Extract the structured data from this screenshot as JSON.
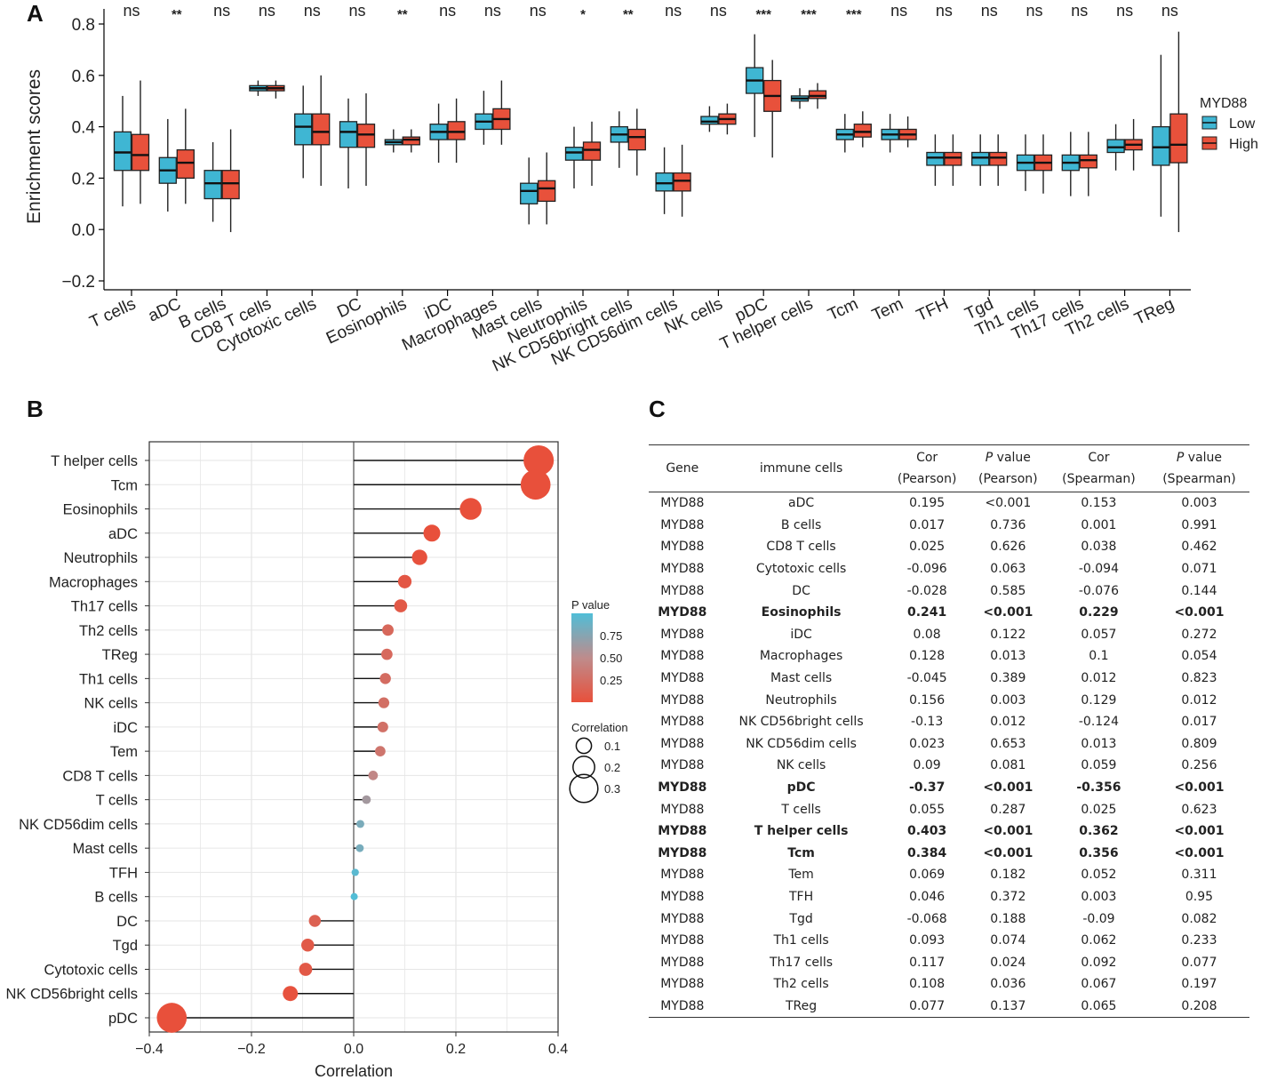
{
  "chart_data": [
    {
      "panel": "A",
      "type": "box",
      "ylabel": "Enrichment scores",
      "ylim": [
        -0.2,
        0.8
      ],
      "yticks": [
        "−0.2",
        "0.0",
        "0.2",
        "0.4",
        "0.6",
        "0.8"
      ],
      "legend": {
        "title": "MYD88",
        "position": "right",
        "entries": [
          {
            "name": "Low",
            "color": "#3fb6d3"
          },
          {
            "name": "High",
            "color": "#e8513b"
          }
        ]
      },
      "categories": [
        "T cells",
        "aDC",
        "B cells",
        "CD8 T cells",
        "Cytotoxic cells",
        "DC",
        "Eosinophils",
        "iDC",
        "Macrophages",
        "Mast cells",
        "Neutrophils",
        "NK CD56bright cells",
        "NK CD56dim cells",
        "NK cells",
        "pDC",
        "T helper cells",
        "Tcm",
        "Tem",
        "TFH",
        "Tgd",
        "Th1 cells",
        "Th17 cells",
        "Th2 cells",
        "TReg"
      ],
      "significance": [
        "ns",
        "**",
        "ns",
        "ns",
        "ns",
        "ns",
        "**",
        "ns",
        "ns",
        "ns",
        "*",
        "**",
        "ns",
        "ns",
        "***",
        "***",
        "***",
        "ns",
        "ns",
        "ns",
        "ns",
        "ns",
        "ns",
        "ns"
      ],
      "series": [
        {
          "name": "Low",
          "boxes": [
            [
              0.09,
              0.23,
              0.3,
              0.38,
              0.52
            ],
            [
              0.07,
              0.18,
              0.23,
              0.28,
              0.43
            ],
            [
              0.03,
              0.12,
              0.18,
              0.23,
              0.34
            ],
            [
              0.52,
              0.54,
              0.55,
              0.56,
              0.58
            ],
            [
              0.2,
              0.33,
              0.4,
              0.45,
              0.56
            ],
            [
              0.16,
              0.32,
              0.38,
              0.42,
              0.51
            ],
            [
              0.3,
              0.33,
              0.34,
              0.35,
              0.39
            ],
            [
              0.26,
              0.35,
              0.38,
              0.41,
              0.49
            ],
            [
              0.33,
              0.39,
              0.42,
              0.45,
              0.54
            ],
            [
              0.02,
              0.1,
              0.15,
              0.18,
              0.28
            ],
            [
              0.16,
              0.27,
              0.3,
              0.32,
              0.4
            ],
            [
              0.24,
              0.34,
              0.37,
              0.4,
              0.46
            ],
            [
              0.06,
              0.15,
              0.18,
              0.22,
              0.32
            ],
            [
              0.38,
              0.41,
              0.42,
              0.44,
              0.48
            ],
            [
              0.36,
              0.53,
              0.58,
              0.63,
              0.76
            ],
            [
              0.47,
              0.5,
              0.51,
              0.52,
              0.55
            ],
            [
              0.3,
              0.35,
              0.37,
              0.39,
              0.45
            ],
            [
              0.3,
              0.35,
              0.37,
              0.39,
              0.45
            ],
            [
              0.17,
              0.25,
              0.28,
              0.3,
              0.37
            ],
            [
              0.17,
              0.25,
              0.28,
              0.3,
              0.37
            ],
            [
              0.15,
              0.23,
              0.26,
              0.29,
              0.37
            ],
            [
              0.13,
              0.23,
              0.26,
              0.29,
              0.38
            ],
            [
              0.23,
              0.3,
              0.32,
              0.35,
              0.41
            ],
            [
              0.05,
              0.25,
              0.32,
              0.4,
              0.68
            ]
          ]
        },
        {
          "name": "High",
          "boxes": [
            [
              0.1,
              0.23,
              0.29,
              0.37,
              0.58
            ],
            [
              0.1,
              0.2,
              0.26,
              0.31,
              0.47
            ],
            [
              -0.01,
              0.12,
              0.18,
              0.23,
              0.39
            ],
            [
              0.51,
              0.54,
              0.55,
              0.56,
              0.58
            ],
            [
              0.17,
              0.33,
              0.38,
              0.45,
              0.6
            ],
            [
              0.17,
              0.32,
              0.37,
              0.41,
              0.53
            ],
            [
              0.3,
              0.33,
              0.35,
              0.36,
              0.39
            ],
            [
              0.26,
              0.35,
              0.38,
              0.42,
              0.51
            ],
            [
              0.33,
              0.39,
              0.43,
              0.47,
              0.58
            ],
            [
              0.02,
              0.11,
              0.16,
              0.19,
              0.3
            ],
            [
              0.17,
              0.27,
              0.31,
              0.34,
              0.42
            ],
            [
              0.21,
              0.31,
              0.36,
              0.39,
              0.47
            ],
            [
              0.05,
              0.15,
              0.19,
              0.22,
              0.33
            ],
            [
              0.37,
              0.41,
              0.43,
              0.45,
              0.49
            ],
            [
              0.28,
              0.46,
              0.52,
              0.58,
              0.66
            ],
            [
              0.47,
              0.51,
              0.52,
              0.54,
              0.57
            ],
            [
              0.32,
              0.36,
              0.38,
              0.41,
              0.46
            ],
            [
              0.32,
              0.35,
              0.37,
              0.39,
              0.44
            ],
            [
              0.17,
              0.25,
              0.28,
              0.3,
              0.37
            ],
            [
              0.17,
              0.25,
              0.28,
              0.3,
              0.37
            ],
            [
              0.14,
              0.23,
              0.26,
              0.29,
              0.37
            ],
            [
              0.13,
              0.24,
              0.27,
              0.29,
              0.38
            ],
            [
              0.23,
              0.31,
              0.33,
              0.35,
              0.43
            ],
            [
              -0.01,
              0.26,
              0.33,
              0.45,
              0.77
            ]
          ]
        }
      ]
    },
    {
      "panel": "B",
      "type": "lollipop",
      "xlabel": "Correlation",
      "xlim": [
        -0.4,
        0.4
      ],
      "xticks": [
        "−0.4",
        "−0.2",
        "0.0",
        "0.2",
        "0.4"
      ],
      "legend_pvalue": {
        "title": "P value",
        "ticks": [
          "0.75",
          "0.50",
          "0.25"
        ]
      },
      "legend_size": {
        "title": "Correlation",
        "ticks": [
          "0.1",
          "0.2",
          "0.3"
        ]
      },
      "categories": [
        "T helper cells",
        "Tcm",
        "Eosinophils",
        "aDC",
        "Neutrophils",
        "Macrophages",
        "Th17 cells",
        "Th2 cells",
        "TReg",
        "Th1 cells",
        "NK cells",
        "iDC",
        "Tem",
        "CD8 T cells",
        "T cells",
        "NK CD56dim cells",
        "Mast cells",
        "TFH",
        "B cells",
        "DC",
        "Tgd",
        "Cytotoxic cells",
        "NK CD56bright cells",
        "pDC"
      ],
      "values": [
        0.362,
        0.356,
        0.229,
        0.153,
        0.129,
        0.1,
        0.092,
        0.067,
        0.065,
        0.062,
        0.059,
        0.057,
        0.052,
        0.038,
        0.025,
        0.013,
        0.012,
        0.003,
        0.001,
        -0.076,
        -0.09,
        -0.094,
        -0.124,
        -0.356
      ],
      "pvalues": [
        0.0005,
        0.0005,
        0.0005,
        0.003,
        0.012,
        0.054,
        0.077,
        0.197,
        0.208,
        0.233,
        0.256,
        0.272,
        0.311,
        0.462,
        0.623,
        0.809,
        0.823,
        0.95,
        0.991,
        0.144,
        0.082,
        0.071,
        0.017,
        0.0005
      ]
    }
  ],
  "panels": {
    "a": "A",
    "b": "B",
    "c": "C"
  },
  "table": {
    "headers": [
      {
        "top": "Gene",
        "bottom": ""
      },
      {
        "top": "immune cells",
        "bottom": ""
      },
      {
        "top": "Cor",
        "bottom": "(Pearson)"
      },
      {
        "top_italic": "P",
        "top": " value",
        "bottom": "(Pearson)"
      },
      {
        "top": "Cor",
        "bottom": "(Spearman)"
      },
      {
        "top_italic": "P",
        "top": " value",
        "bottom": "(Spearman)"
      }
    ],
    "rows": [
      [
        "MYD88",
        "aDC",
        "0.195",
        "<0.001",
        "0.153",
        "0.003"
      ],
      [
        "MYD88",
        "B cells",
        "0.017",
        "0.736",
        "0.001",
        "0.991"
      ],
      [
        "MYD88",
        "CD8 T cells",
        "0.025",
        "0.626",
        "0.038",
        "0.462"
      ],
      [
        "MYD88",
        "Cytotoxic cells",
        "-0.096",
        "0.063",
        "-0.094",
        "0.071"
      ],
      [
        "MYD88",
        "DC",
        "-0.028",
        "0.585",
        "-0.076",
        "0.144"
      ],
      [
        "MYD88",
        "Eosinophils",
        "0.241",
        "<0.001",
        "0.229",
        "<0.001"
      ],
      [
        "MYD88",
        "iDC",
        "0.08",
        "0.122",
        "0.057",
        "0.272"
      ],
      [
        "MYD88",
        "Macrophages",
        "0.128",
        "0.013",
        "0.1",
        "0.054"
      ],
      [
        "MYD88",
        "Mast cells",
        "-0.045",
        "0.389",
        "0.012",
        "0.823"
      ],
      [
        "MYD88",
        "Neutrophils",
        "0.156",
        "0.003",
        "0.129",
        "0.012"
      ],
      [
        "MYD88",
        "NK CD56bright cells",
        "-0.13",
        "0.012",
        "-0.124",
        "0.017"
      ],
      [
        "MYD88",
        "NK CD56dim cells",
        "0.023",
        "0.653",
        "0.013",
        "0.809"
      ],
      [
        "MYD88",
        "NK cells",
        "0.09",
        "0.081",
        "0.059",
        "0.256"
      ],
      [
        "MYD88",
        "pDC",
        "-0.37",
        "<0.001",
        "-0.356",
        "<0.001"
      ],
      [
        "MYD88",
        "T cells",
        "0.055",
        "0.287",
        "0.025",
        "0.623"
      ],
      [
        "MYD88",
        "T helper cells",
        "0.403",
        "<0.001",
        "0.362",
        "<0.001"
      ],
      [
        "MYD88",
        "Tcm",
        "0.384",
        "<0.001",
        "0.356",
        "<0.001"
      ],
      [
        "MYD88",
        "Tem",
        "0.069",
        "0.182",
        "0.052",
        "0.311"
      ],
      [
        "MYD88",
        "TFH",
        "0.046",
        "0.372",
        "0.003",
        "0.95"
      ],
      [
        "MYD88",
        "Tgd",
        "-0.068",
        "0.188",
        "-0.09",
        "0.082"
      ],
      [
        "MYD88",
        "Th1 cells",
        "0.093",
        "0.074",
        "0.062",
        "0.233"
      ],
      [
        "MYD88",
        "Th17 cells",
        "0.117",
        "0.024",
        "0.092",
        "0.077"
      ],
      [
        "MYD88",
        "Th2 cells",
        "0.108",
        "0.036",
        "0.067",
        "0.197"
      ],
      [
        "MYD88",
        "TReg",
        "0.077",
        "0.137",
        "0.065",
        "0.208"
      ]
    ],
    "bold_rows": [
      5,
      13,
      15,
      16
    ]
  }
}
